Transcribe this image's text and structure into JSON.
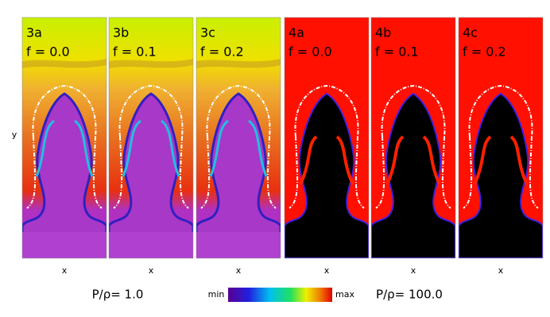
{
  "y_label": "y",
  "panels": [
    {
      "label": "3a",
      "f": "f = 0.0",
      "x_label": "x"
    },
    {
      "label": "3b",
      "f": "f = 0.1",
      "x_label": "x"
    },
    {
      "label": "3c",
      "f": "f = 0.2",
      "x_label": "x"
    },
    {
      "label": "4a",
      "f": "f = 0.0",
      "x_label": "x"
    },
    {
      "label": "4b",
      "f": "f = 0.1",
      "x_label": "x"
    },
    {
      "label": "4c",
      "f": "f = 0.2",
      "x_label": "x"
    }
  ],
  "legend": {
    "left": "P/ρ= 1.0",
    "min": "min",
    "max": "max",
    "right": "P/ρ= 100.0"
  }
}
